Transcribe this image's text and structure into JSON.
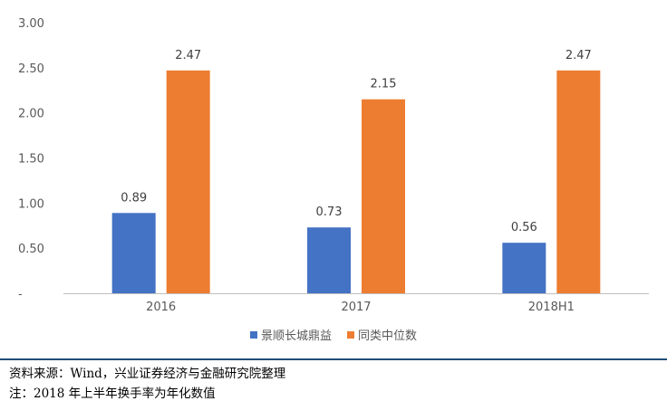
{
  "chart_data": {
    "type": "bar",
    "categories": [
      "2016",
      "2017",
      "2018H1"
    ],
    "series": [
      {
        "name": "景顺长城鼎益",
        "values": [
          0.89,
          0.73,
          0.56
        ],
        "color": "#4472c4"
      },
      {
        "name": "同类中位数",
        "values": [
          2.47,
          2.15,
          2.47
        ],
        "color": "#ed7d31"
      }
    ],
    "data_labels": [
      [
        "0.89",
        "0.73",
        "0.56"
      ],
      [
        "2.47",
        "2.15",
        "2.47"
      ]
    ],
    "y_ticks": [
      {
        "value": 0,
        "label": "-"
      },
      {
        "value": 0.5,
        "label": "0.50"
      },
      {
        "value": 1.0,
        "label": "1.00"
      },
      {
        "value": 1.5,
        "label": "1.50"
      },
      {
        "value": 2.0,
        "label": "2.00"
      },
      {
        "value": 2.5,
        "label": "2.50"
      },
      {
        "value": 3.0,
        "label": "3.00"
      }
    ],
    "ylim": [
      0,
      3
    ],
    "grid": false,
    "legend_position": "bottom"
  },
  "footer": {
    "source": "资料来源：Wind，兴业证券经济与金融研究院整理",
    "note": "注：2018 年上半年换手率为年化数值"
  }
}
